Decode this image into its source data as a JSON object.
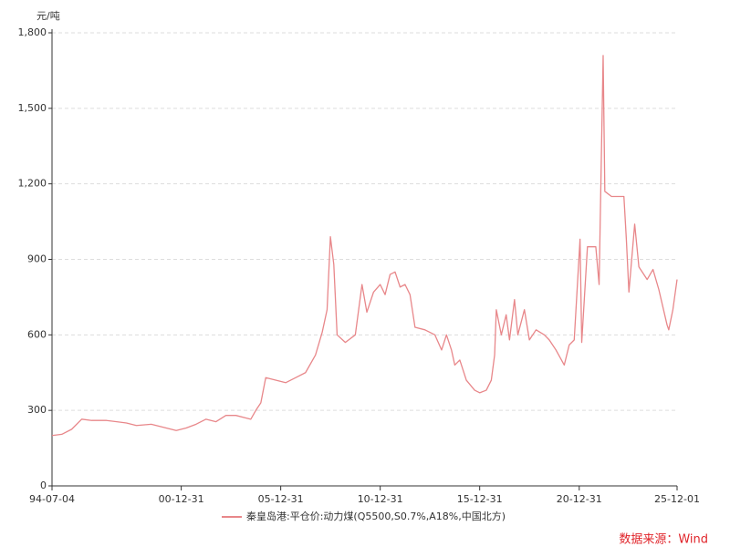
{
  "chart_data": {
    "type": "line",
    "y_label": "元/吨",
    "source": "数据来源：Wind",
    "x": [
      "1994-07-04",
      "1994-12-31",
      "1995-06-30",
      "1995-12-31",
      "1996-06-30",
      "1997-03-31",
      "1998-03-31",
      "1998-09-30",
      "1999-06-30",
      "2000-03-31",
      "2000-09-30",
      "2001-03-31",
      "2001-09-30",
      "2002-03-31",
      "2002-09-30",
      "2003-03-31",
      "2003-09-30",
      "2004-03-31",
      "2004-06-30",
      "2004-09-30",
      "2004-12-31",
      "2005-03-31",
      "2005-09-30",
      "2006-03-31",
      "2006-09-30",
      "2007-03-31",
      "2007-09-30",
      "2008-01-31",
      "2008-04-30",
      "2008-06-30",
      "2008-08-31",
      "2008-10-31",
      "2009-03-31",
      "2009-09-30",
      "2010-01-31",
      "2010-04-30",
      "2010-08-31",
      "2010-12-31",
      "2011-03-31",
      "2011-06-30",
      "2011-09-30",
      "2011-12-31",
      "2012-03-31",
      "2012-06-30",
      "2012-09-30",
      "2013-03-31",
      "2013-09-30",
      "2014-01-31",
      "2014-04-30",
      "2014-07-31",
      "2014-09-30",
      "2014-12-31",
      "2015-04-30",
      "2015-09-30",
      "2015-12-31",
      "2016-04-30",
      "2016-07-31",
      "2016-09-30",
      "2016-10-31",
      "2017-01-31",
      "2017-04-30",
      "2017-06-30",
      "2017-09-30",
      "2017-11-30",
      "2018-03-31",
      "2018-06-30",
      "2018-10-31",
      "2019-03-31",
      "2019-06-30",
      "2019-10-31",
      "2020-03-31",
      "2020-06-30",
      "2020-09-30",
      "2021-01-15",
      "2021-02-15",
      "2021-05-31",
      "2021-10-31",
      "2021-12-31",
      "2022-03-15",
      "2022-04-15",
      "2022-08-15",
      "2023-03-31",
      "2023-05-15",
      "2023-07-01",
      "2023-10-15",
      "2023-12-31",
      "2024-05-31",
      "2024-09-15",
      "2024-12-31",
      "2025-05-31",
      "2025-07-01",
      "2025-09-15",
      "2025-12-01"
    ],
    "series": [
      {
        "name": "秦皇岛港:平仓价:动力煤(Q5500,S0.7%,A18%,中国北方)",
        "color": "#e8878a",
        "values": [
          200,
          205,
          225,
          265,
          260,
          260,
          250,
          240,
          245,
          230,
          220,
          230,
          245,
          265,
          255,
          280,
          280,
          270,
          265,
          300,
          330,
          430,
          420,
          410,
          430,
          450,
          520,
          610,
          700,
          990,
          880,
          600,
          570,
          600,
          800,
          690,
          770,
          800,
          760,
          840,
          850,
          790,
          800,
          760,
          630,
          620,
          600,
          540,
          600,
          540,
          480,
          500,
          420,
          380,
          370,
          380,
          420,
          520,
          700,
          600,
          680,
          580,
          740,
          600,
          700,
          580,
          620,
          600,
          580,
          540,
          480,
          560,
          580,
          980,
          570,
          950,
          950,
          800,
          1710,
          1170,
          1150,
          1150,
          980,
          770,
          1040,
          870,
          820,
          860,
          780,
          640,
          620,
          700,
          820
        ]
      }
    ],
    "xlim": [
      "1994-07-04",
      "2025-12-01"
    ],
    "xticks": [
      {
        "value": "1994-07-04",
        "label": "94-07-04"
      },
      {
        "value": "2000-12-31",
        "label": "00-12-31"
      },
      {
        "value": "2005-12-31",
        "label": "05-12-31"
      },
      {
        "value": "2010-12-31",
        "label": "10-12-31"
      },
      {
        "value": "2015-12-31",
        "label": "15-12-31"
      },
      {
        "value": "2020-12-31",
        "label": "20-12-31"
      },
      {
        "value": "2025-12-01",
        "label": "25-12-01"
      }
    ],
    "ylim": [
      0,
      1800
    ],
    "yticks": [
      0,
      300,
      600,
      900,
      {
        "value": 1200,
        "label": "1,200"
      },
      {
        "value": 1500,
        "label": "1,500"
      },
      {
        "value": 1800,
        "label": "1,800"
      }
    ],
    "grid": true
  }
}
